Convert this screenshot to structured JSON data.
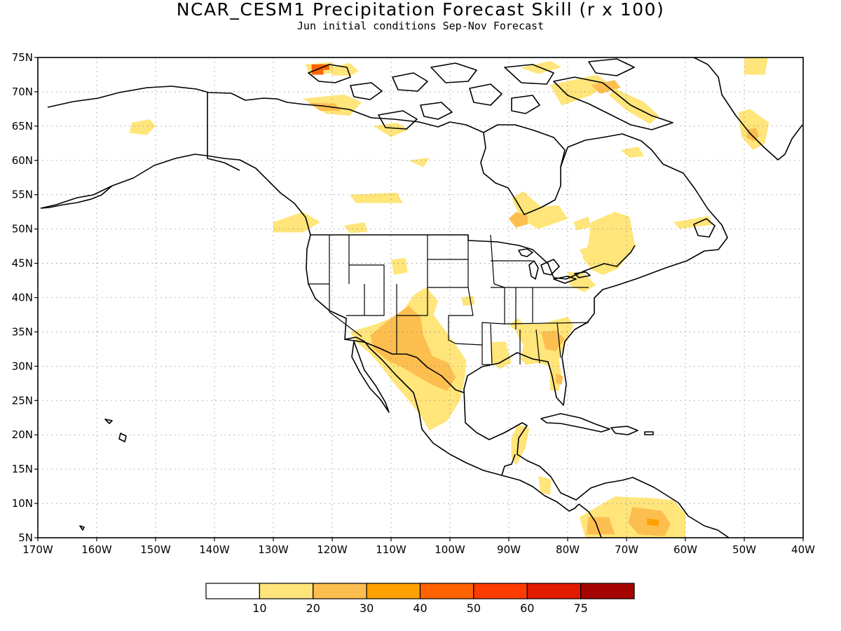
{
  "header": {
    "title": "NCAR_CESM1 Precipitation Forecast Skill (r x 100)",
    "subtitle": "Jun initial conditions  Sep-Nov Forecast"
  },
  "map": {
    "lon_range": [
      -170,
      -40
    ],
    "lat_range": [
      5,
      75
    ],
    "lat_ticks": [
      {
        "value": 75,
        "label": "75N"
      },
      {
        "value": 70,
        "label": "70N"
      },
      {
        "value": 65,
        "label": "65N"
      },
      {
        "value": 60,
        "label": "60N"
      },
      {
        "value": 55,
        "label": "55N"
      },
      {
        "value": 50,
        "label": "50N"
      },
      {
        "value": 45,
        "label": "45N"
      },
      {
        "value": 40,
        "label": "40N"
      },
      {
        "value": 35,
        "label": "35N"
      },
      {
        "value": 30,
        "label": "30N"
      },
      {
        "value": 25,
        "label": "25N"
      },
      {
        "value": 20,
        "label": "20N"
      },
      {
        "value": 15,
        "label": "15N"
      },
      {
        "value": 10,
        "label": "10N"
      },
      {
        "value": 5,
        "label": "5N"
      }
    ],
    "lon_ticks": [
      {
        "value": -170,
        "label": "170W"
      },
      {
        "value": -160,
        "label": "160W"
      },
      {
        "value": -150,
        "label": "150W"
      },
      {
        "value": -140,
        "label": "140W"
      },
      {
        "value": -130,
        "label": "130W"
      },
      {
        "value": -120,
        "label": "120W"
      },
      {
        "value": -110,
        "label": "110W"
      },
      {
        "value": -100,
        "label": "100W"
      },
      {
        "value": -90,
        "label": "90W"
      },
      {
        "value": -80,
        "label": "80W"
      },
      {
        "value": -70,
        "label": "70W"
      },
      {
        "value": -60,
        "label": "60W"
      },
      {
        "value": -50,
        "label": "50W"
      },
      {
        "value": -40,
        "label": "40W"
      }
    ],
    "grid": true,
    "skill_regions": [
      {
        "level": 1,
        "coords": [
          [
            -154,
            65.5
          ],
          [
            -151,
            66
          ],
          [
            -150,
            65
          ],
          [
            -151.5,
            63.7
          ],
          [
            -154.5,
            64
          ]
        ]
      },
      {
        "level": 1,
        "coords": [
          [
            -125,
            69
          ],
          [
            -118,
            69.6
          ],
          [
            -115,
            68.5
          ],
          [
            -117,
            66.5
          ],
          [
            -121,
            66.8
          ]
        ]
      },
      {
        "level": 2,
        "coords": [
          [
            -124,
            68.4
          ],
          [
            -119.5,
            68.3
          ],
          [
            -118.5,
            67.2
          ],
          [
            -122,
            67.2
          ]
        ]
      },
      {
        "level": 1,
        "coords": [
          [
            -120.5,
            73.5
          ],
          [
            -117,
            74.2
          ],
          [
            -115.5,
            73
          ],
          [
            -117,
            72.3
          ],
          [
            -120,
            72.4
          ]
        ]
      },
      {
        "level": 1,
        "coords": [
          [
            -113,
            65
          ],
          [
            -109,
            65.5
          ],
          [
            -107,
            64.5
          ],
          [
            -110,
            63.4
          ]
        ]
      },
      {
        "level": 1,
        "coords": [
          [
            -107,
            60
          ],
          [
            -103.5,
            60.4
          ],
          [
            -104.5,
            59
          ]
        ]
      },
      {
        "level": 1,
        "coords": [
          [
            -117,
            55
          ],
          [
            -109,
            55.3
          ],
          [
            -108,
            53.8
          ],
          [
            -116,
            53.8
          ]
        ]
      },
      {
        "level": 1,
        "coords": [
          [
            -130,
            51
          ],
          [
            -125,
            52.5
          ],
          [
            -122,
            51
          ],
          [
            -125,
            49.5
          ],
          [
            -130,
            49.5
          ]
        ]
      },
      {
        "level": 1,
        "coords": [
          [
            -118,
            50.5
          ],
          [
            -114.5,
            51
          ],
          [
            -114,
            49.6
          ],
          [
            -117,
            49.4
          ]
        ]
      },
      {
        "level": 1,
        "coords": [
          [
            -110,
            45.5
          ],
          [
            -107.5,
            45.8
          ],
          [
            -107.2,
            43.7
          ],
          [
            -109.5,
            43.3
          ]
        ]
      },
      {
        "level": 1,
        "coords": [
          [
            -117,
            35
          ],
          [
            -113,
            36
          ],
          [
            -108.5,
            37.5
          ],
          [
            -106,
            40.5
          ],
          [
            -104,
            41.5
          ],
          [
            -102,
            39.5
          ],
          [
            -102.8,
            37.5
          ],
          [
            -100.8,
            35.2
          ],
          [
            -98.5,
            32.5
          ],
          [
            -97.2,
            30.8
          ],
          [
            -97.5,
            28.2
          ],
          [
            -98.3,
            25
          ],
          [
            -100.5,
            22
          ],
          [
            -103.5,
            20.6
          ],
          [
            -105,
            22.8
          ],
          [
            -106.5,
            24.5
          ],
          [
            -109.5,
            27.5
          ],
          [
            -111.5,
            29.8
          ],
          [
            -113.5,
            31.8
          ],
          [
            -116,
            33.6
          ]
        ]
      },
      {
        "level": 2,
        "coords": [
          [
            -113.5,
            34.5
          ],
          [
            -110,
            37
          ],
          [
            -107,
            38.8
          ],
          [
            -105,
            37.2
          ],
          [
            -104.5,
            34.5
          ],
          [
            -103,
            31.5
          ],
          [
            -100.3,
            30.5
          ],
          [
            -99,
            28.4
          ],
          [
            -100.5,
            26.4
          ],
          [
            -102.8,
            27.2
          ],
          [
            -105.5,
            28.5
          ],
          [
            -108,
            29.8
          ],
          [
            -110.5,
            30.8
          ],
          [
            -113,
            32.5
          ]
        ]
      },
      {
        "level": 1,
        "coords": [
          [
            -98,
            40
          ],
          [
            -96,
            40.3
          ],
          [
            -95.8,
            39
          ],
          [
            -97.8,
            38.8
          ]
        ]
      },
      {
        "level": 1,
        "coords": [
          [
            -89.5,
            54.5
          ],
          [
            -88,
            51.5
          ],
          [
            -85,
            50
          ],
          [
            -80,
            51.5
          ],
          [
            -81.5,
            53.5
          ],
          [
            -84.5,
            53.2
          ],
          [
            -87.5,
            55.5
          ]
        ]
      },
      {
        "level": 2,
        "coords": [
          [
            -90,
            51.5
          ],
          [
            -88.8,
            52.5
          ],
          [
            -86.8,
            52
          ],
          [
            -86.8,
            50.7
          ],
          [
            -88.8,
            50.2
          ]
        ]
      },
      {
        "level": 1,
        "coords": [
          [
            -76,
            51
          ],
          [
            -72,
            52.5
          ],
          [
            -69.5,
            51.8
          ],
          [
            -68.5,
            47.5
          ],
          [
            -71.5,
            44.2
          ],
          [
            -74,
            43.3
          ],
          [
            -75.8,
            44
          ],
          [
            -77.5,
            45.8
          ],
          [
            -76.5,
            47.8
          ]
        ]
      },
      {
        "level": 1,
        "coords": [
          [
            -79,
            51
          ],
          [
            -76.5,
            51.8
          ],
          [
            -76,
            50.3
          ],
          [
            -78.5,
            49.8
          ]
        ]
      },
      {
        "level": 1,
        "coords": [
          [
            -62,
            51
          ],
          [
            -56,
            51.9
          ],
          [
            -55.5,
            50.6
          ],
          [
            -61,
            50
          ]
        ]
      },
      {
        "level": 1,
        "coords": [
          [
            -78,
            47
          ],
          [
            -76,
            47.5
          ],
          [
            -75.5,
            46
          ],
          [
            -77,
            45.5
          ]
        ]
      },
      {
        "level": 1,
        "coords": [
          [
            -80,
            43.8
          ],
          [
            -77,
            43.4
          ],
          [
            -75.2,
            41.8
          ],
          [
            -77.2,
            40.8
          ],
          [
            -79.6,
            41.8
          ]
        ]
      },
      {
        "level": 1,
        "coords": [
          [
            -89,
            36
          ],
          [
            -84,
            36.3
          ],
          [
            -80,
            37.2
          ],
          [
            -79,
            36
          ],
          [
            -80,
            34
          ],
          [
            -81.5,
            31
          ],
          [
            -81,
            28.5
          ],
          [
            -81.5,
            26.4
          ],
          [
            -83,
            26.5
          ],
          [
            -83,
            30
          ],
          [
            -85,
            30.5
          ],
          [
            -87,
            30.2
          ],
          [
            -88,
            31
          ],
          [
            -87.5,
            33
          ],
          [
            -88.5,
            34.5
          ]
        ]
      },
      {
        "level": 2,
        "coords": [
          [
            -84.5,
            35
          ],
          [
            -82,
            35.2
          ],
          [
            -80.5,
            34
          ],
          [
            -82,
            32.2
          ],
          [
            -83.8,
            32.5
          ]
        ]
      },
      {
        "level": 2,
        "coords": [
          [
            -82,
            29
          ],
          [
            -80.8,
            28.5
          ],
          [
            -81,
            27.3
          ],
          [
            -82,
            27.6
          ]
        ]
      },
      {
        "level": 1,
        "coords": [
          [
            -93,
            33.5
          ],
          [
            -90.5,
            33.6
          ],
          [
            -89.6,
            30.5
          ],
          [
            -91.5,
            29.6
          ],
          [
            -93,
            30.5
          ]
        ]
      },
      {
        "level": 1,
        "coords": [
          [
            -90,
            36
          ],
          [
            -88.5,
            37
          ],
          [
            -87.5,
            36.2
          ],
          [
            -88.5,
            35
          ]
        ]
      },
      {
        "level": 1,
        "coords": [
          [
            -88.5,
            21.5
          ],
          [
            -86.5,
            21
          ],
          [
            -87.2,
            18
          ],
          [
            -88.8,
            15.5
          ],
          [
            -89.6,
            16.8
          ],
          [
            -89.6,
            19.5
          ]
        ]
      },
      {
        "level": 1,
        "coords": [
          [
            -85,
            14
          ],
          [
            -82.8,
            13.5
          ],
          [
            -83,
            11.2
          ],
          [
            -84.6,
            11.6
          ]
        ]
      },
      {
        "level": 1,
        "coords": [
          [
            -78,
            8
          ],
          [
            -72,
            11
          ],
          [
            -66,
            10.8
          ],
          [
            -62,
            10.5
          ],
          [
            -60,
            8.5
          ],
          [
            -60,
            5
          ],
          [
            -77,
            5
          ]
        ]
      },
      {
        "level": 2,
        "coords": [
          [
            -76.5,
            8
          ],
          [
            -73,
            8
          ],
          [
            -72,
            5.5
          ],
          [
            -76.8,
            5.5
          ]
        ]
      },
      {
        "level": 2,
        "coords": [
          [
            -69,
            9.5
          ],
          [
            -64,
            8.9
          ],
          [
            -62.5,
            7
          ],
          [
            -63.5,
            5.2
          ],
          [
            -68,
            5.5
          ],
          [
            -69.7,
            7.2
          ]
        ]
      },
      {
        "level": 3,
        "coords": [
          [
            -66.5,
            7.8
          ],
          [
            -64.5,
            7.6
          ],
          [
            -64.6,
            6.7
          ],
          [
            -66.6,
            6.9
          ]
        ]
      },
      {
        "level": 1,
        "coords": [
          [
            -83,
            71
          ],
          [
            -75,
            72.5
          ],
          [
            -73,
            71.2
          ],
          [
            -76,
            69.5
          ],
          [
            -81,
            68
          ]
        ]
      },
      {
        "level": 2,
        "coords": [
          [
            -76,
            71
          ],
          [
            -72,
            71.7
          ],
          [
            -71,
            70.6
          ],
          [
            -74.5,
            69.7
          ]
        ]
      },
      {
        "level": 1,
        "coords": [
          [
            -72,
            70.5
          ],
          [
            -67,
            68.5
          ],
          [
            -64.5,
            66.5
          ],
          [
            -66,
            65.3
          ],
          [
            -70,
            67.3
          ],
          [
            -73,
            69.5
          ]
        ]
      },
      {
        "level": 1,
        "coords": [
          [
            -88,
            73.5
          ],
          [
            -83,
            74.5
          ],
          [
            -81,
            73.6
          ],
          [
            -85,
            72.6
          ]
        ]
      },
      {
        "level": 1,
        "coords": [
          [
            -71,
            61.5
          ],
          [
            -68,
            62
          ],
          [
            -67,
            60.6
          ],
          [
            -69.5,
            60.4
          ]
        ]
      },
      {
        "level": 1,
        "coords": [
          [
            -50,
            75
          ],
          [
            -46,
            75
          ],
          [
            -46.5,
            72.5
          ],
          [
            -50,
            72.5
          ]
        ]
      },
      {
        "level": 1,
        "coords": [
          [
            -51,
            67
          ],
          [
            -49,
            67.5
          ],
          [
            -45.8,
            65.5
          ],
          [
            -46.5,
            62.5
          ],
          [
            -48.5,
            61.5
          ],
          [
            -50.5,
            63.5
          ]
        ]
      },
      {
        "level": 2,
        "coords": [
          [
            -49.5,
            64.5
          ],
          [
            -48,
            64.8
          ],
          [
            -47.5,
            63.5
          ],
          [
            -48.5,
            62.8
          ],
          [
            -49.6,
            63.3
          ]
        ]
      },
      {
        "level": 1,
        "coords": [
          [
            -124.5,
            74
          ],
          [
            -120,
            74.3
          ],
          [
            -119.5,
            72.7
          ],
          [
            -124,
            72.6
          ]
        ]
      },
      {
        "level": 4,
        "coords": [
          [
            -123.5,
            74
          ],
          [
            -120.5,
            74
          ],
          [
            -120.5,
            73.2
          ],
          [
            -121.5,
            73.2
          ],
          [
            -121.5,
            72.5
          ],
          [
            -123.5,
            72.5
          ]
        ]
      }
    ]
  },
  "colorbar": {
    "colors": [
      "#ffffff",
      "#ffe57a",
      "#fdbe50",
      "#ffa100",
      "#ff6200",
      "#ff3c00",
      "#e11a00",
      "#a50500"
    ],
    "labels": [
      "10",
      "20",
      "30",
      "40",
      "50",
      "60",
      "75"
    ]
  }
}
